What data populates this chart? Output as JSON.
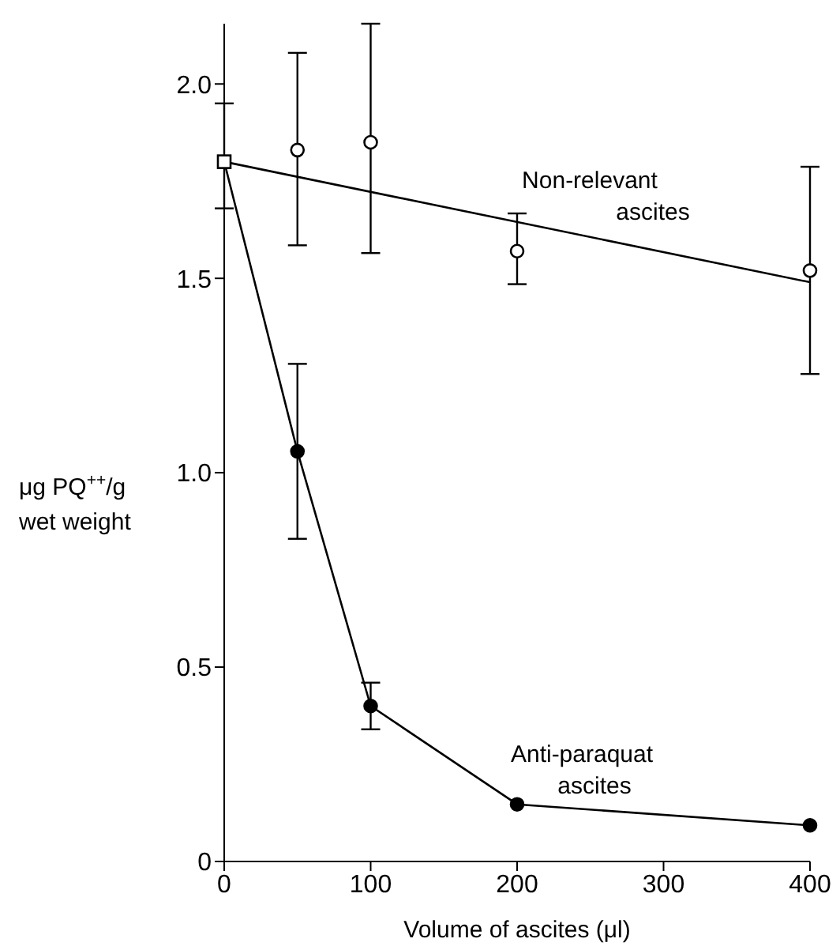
{
  "chart_data": {
    "type": "line",
    "xlabel": "Volume of ascites (μl)",
    "ylabel": "μg PQ$^{++}$/g wet weight",
    "xlim": [
      0,
      400
    ],
    "xticks": [
      0,
      100,
      200,
      300,
      400
    ],
    "ylim": [
      0,
      2.15
    ],
    "yticks": [
      0,
      0.5,
      {
        "value": 1,
        "label": "1.0"
      },
      1.5,
      {
        "value": 2,
        "label": "2.0"
      }
    ],
    "series": [
      {
        "x": [
          0,
          400
        ],
        "values": [
          1.8,
          1.49
        ],
        "color": "#000000",
        "marker": "none"
      },
      {
        "type": "scatter",
        "name": "Non-relevant ascites",
        "x": [
          50,
          100,
          200,
          400
        ],
        "values": [
          1.83,
          1.85,
          1.57,
          1.52
        ],
        "errors": [
          [
            1.585,
            2.08
          ],
          [
            1.565,
            2.155
          ],
          [
            1.485,
            1.667
          ],
          [
            1.254,
            1.787
          ]
        ],
        "color": "#000000",
        "marker": "circle"
      },
      {
        "name": "Anti-paraquat ascites",
        "x": [
          0,
          50,
          100,
          200,
          400
        ],
        "values": [
          1.8,
          1.055,
          0.4,
          0.147,
          0.093
        ],
        "errors": [
          null,
          [
            0.83,
            1.28
          ],
          [
            0.34,
            0.46
          ],
          null,
          null
        ],
        "color": "#000000",
        "marker": "circle"
      },
      {
        "type": "scatter",
        "x": [
          0
        ],
        "values": [
          1.8
        ],
        "errors": [
          [
            1.68,
            1.95
          ]
        ],
        "color": "#000000",
        "marker": "square"
      }
    ]
  }
}
